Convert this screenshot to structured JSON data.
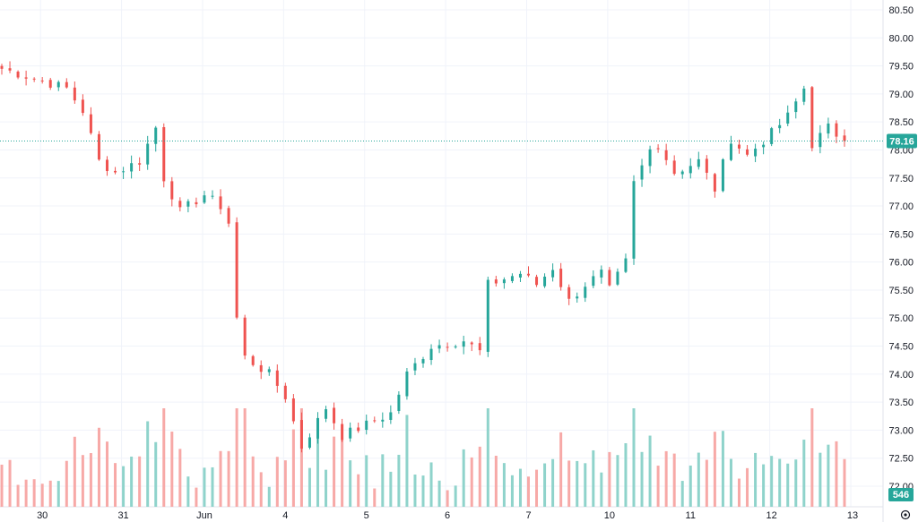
{
  "chart_data": {
    "type": "candlestick",
    "y_axis": {
      "range": [
        71.9,
        80.6
      ],
      "ticks": [
        "72.00",
        "72.50",
        "73.00",
        "73.50",
        "74.00",
        "74.50",
        "75.00",
        "75.50",
        "76.00",
        "76.50",
        "77.00",
        "77.50",
        "78.00",
        "78.50",
        "79.00",
        "79.50",
        "80.00",
        "80.50"
      ]
    },
    "x_axis": {
      "ticks": [
        {
          "label": "30",
          "index": 5
        },
        {
          "label": "31",
          "index": 15
        },
        {
          "label": "Jun",
          "index": 25
        },
        {
          "label": "4",
          "index": 35
        },
        {
          "label": "5",
          "index": 45
        },
        {
          "label": "6",
          "index": 55
        },
        {
          "label": "7",
          "index": 65
        },
        {
          "label": "10",
          "index": 75
        },
        {
          "label": "11",
          "index": 85
        },
        {
          "label": "12",
          "index": 95
        },
        {
          "label": "13",
          "index": 105
        }
      ]
    },
    "last_price": 78.16,
    "last_price_label": "78.16",
    "volume_label": "546",
    "colors": {
      "up": "#26a69a",
      "down": "#ef5350",
      "up_volume": "#8fd3cb",
      "down_volume": "#f7a9a7",
      "grid": "#f0f3fa",
      "text": "#131722"
    },
    "anchors": [
      [
        0,
        79.45
      ],
      [
        8,
        79.1
      ],
      [
        10,
        78.7
      ],
      [
        12,
        77.8
      ],
      [
        14,
        77.6
      ],
      [
        17,
        77.8
      ],
      [
        19,
        78.4
      ],
      [
        20,
        77.5
      ],
      [
        22,
        76.9
      ],
      [
        25,
        77.2
      ],
      [
        27,
        77.0
      ],
      [
        28,
        76.7
      ],
      [
        29,
        75.0
      ],
      [
        30,
        74.3
      ],
      [
        33,
        74.0
      ],
      [
        35,
        73.6
      ],
      [
        37,
        72.7
      ],
      [
        40,
        73.4
      ],
      [
        42,
        72.9
      ],
      [
        45,
        73.1
      ],
      [
        48,
        73.3
      ],
      [
        50,
        74.0
      ],
      [
        53,
        74.5
      ],
      [
        57,
        74.6
      ],
      [
        59,
        74.4
      ],
      [
        60,
        75.6
      ],
      [
        64,
        75.8
      ],
      [
        66,
        75.6
      ],
      [
        68,
        75.9
      ],
      [
        70,
        75.3
      ],
      [
        72,
        75.6
      ],
      [
        74,
        75.8
      ],
      [
        75,
        75.5
      ],
      [
        77,
        76.0
      ],
      [
        78,
        77.4
      ],
      [
        80,
        78.0
      ],
      [
        81,
        78.1
      ],
      [
        83,
        77.6
      ],
      [
        86,
        77.8
      ],
      [
        88,
        77.3
      ],
      [
        90,
        78.2
      ],
      [
        92,
        77.9
      ],
      [
        95,
        78.3
      ],
      [
        97,
        78.6
      ],
      [
        99,
        79.1
      ],
      [
        100,
        78.1
      ],
      [
        102,
        78.4
      ],
      [
        104,
        78.16
      ]
    ],
    "total_bars": 105
  }
}
